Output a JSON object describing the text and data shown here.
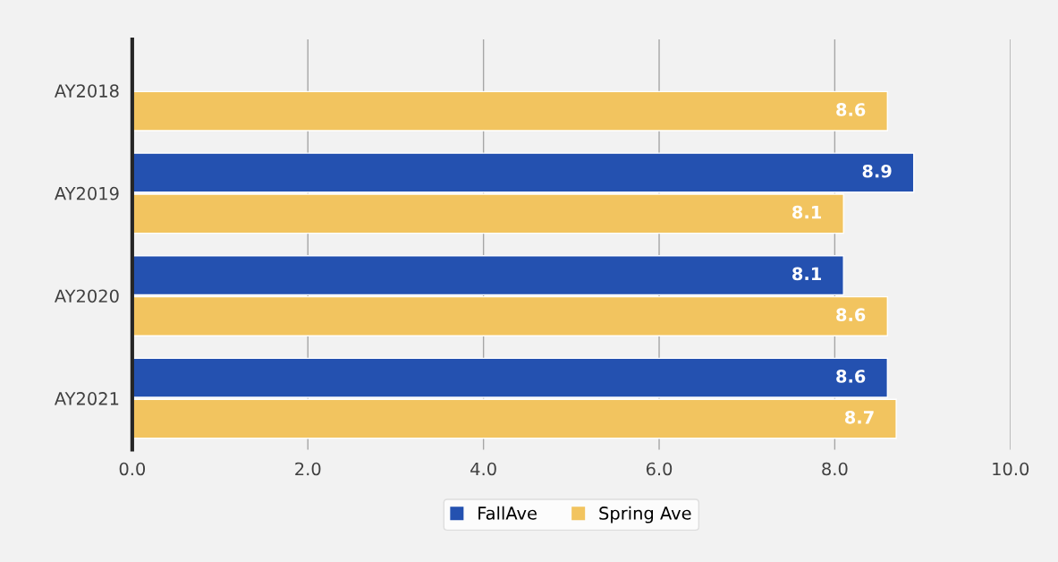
{
  "chart_data": {
    "type": "bar",
    "orientation": "horizontal",
    "categories": [
      "AY2018",
      "AY2019",
      "AY2020",
      "AY2021"
    ],
    "series": [
      {
        "name": "FallAve",
        "color": "#2451b0",
        "values": [
          null,
          8.9,
          8.1,
          8.6
        ]
      },
      {
        "name": "Spring Ave",
        "color": "#f2c45f",
        "values": [
          8.6,
          8.1,
          8.6,
          8.7
        ]
      }
    ],
    "xlim": [
      0,
      10
    ],
    "xticks": [
      {
        "value": 0,
        "label": "0.0"
      },
      {
        "value": 2,
        "label": "2.0"
      },
      {
        "value": 4,
        "label": "4.0"
      },
      {
        "value": 6,
        "label": "6.0"
      },
      {
        "value": 8,
        "label": "8.0"
      },
      {
        "value": 10,
        "label": "10.0"
      }
    ],
    "grid": "x",
    "legend": "bottom",
    "data_labels": true
  }
}
